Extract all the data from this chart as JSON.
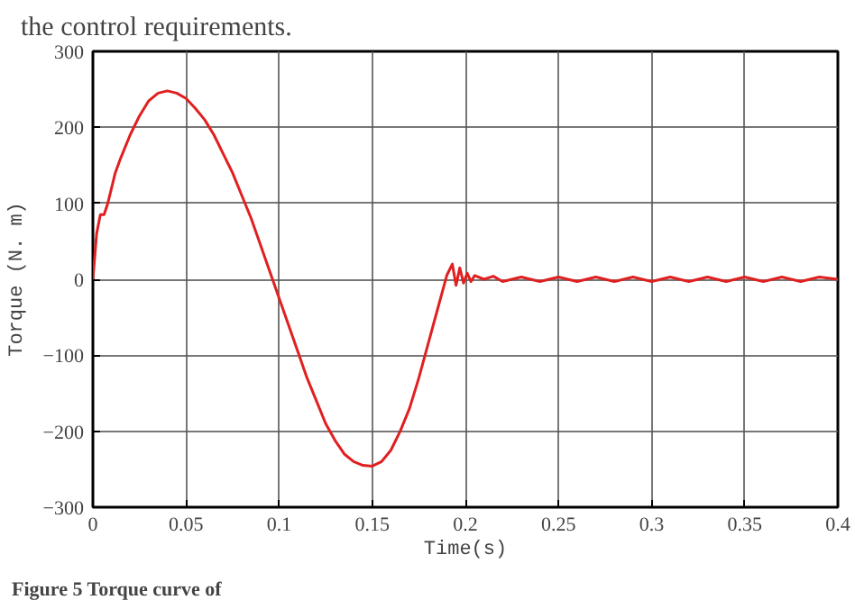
{
  "chart_data": {
    "type": "line",
    "xlabel": "Time(s)",
    "ylabel": "Torque (N. m)",
    "annotations": [
      "the control requirements.",
      "Figure 5 Torque curve of"
    ],
    "series": [
      {
        "color": "#e02020",
        "x": [
          0,
          0.002,
          0.004,
          0.006,
          0.008,
          0.01,
          0.012,
          0.015,
          0.02,
          0.025,
          0.03,
          0.035,
          0.04,
          0.045,
          0.05,
          0.055,
          0.06,
          0.065,
          0.07,
          0.075,
          0.08,
          0.085,
          0.09,
          0.095,
          0.1,
          0.105,
          0.11,
          0.115,
          0.12,
          0.125,
          0.13,
          0.135,
          0.14,
          0.145,
          0.15,
          0.155,
          0.16,
          0.165,
          0.17,
          0.175,
          0.18,
          0.185,
          0.19,
          0.193,
          0.195,
          0.197,
          0.199,
          0.201,
          0.203,
          0.205,
          0.21,
          0.215,
          0.22,
          0.23,
          0.24,
          0.25,
          0.26,
          0.27,
          0.28,
          0.29,
          0.3,
          0.31,
          0.32,
          0.33,
          0.34,
          0.35,
          0.36,
          0.37,
          0.38,
          0.39,
          0.4
        ],
        "values": [
          0,
          60,
          85,
          85,
          100,
          120,
          140,
          160,
          190,
          215,
          235,
          245,
          248,
          245,
          238,
          225,
          210,
          190,
          165,
          140,
          110,
          80,
          45,
          10,
          -25,
          -60,
          -95,
          -130,
          -160,
          -190,
          -212,
          -230,
          -240,
          -245,
          -246,
          -240,
          -225,
          -200,
          -170,
          -130,
          -85,
          -40,
          5,
          20,
          -8,
          15,
          -5,
          8,
          -3,
          5,
          0,
          4,
          -3,
          3,
          -3,
          3,
          -3,
          3,
          -3,
          3,
          -3,
          3,
          -3,
          3,
          -3,
          3,
          -3,
          3,
          -3,
          3,
          0
        ]
      }
    ],
    "xlim": [
      0,
      0.4
    ],
    "ylim": [
      -300,
      300
    ],
    "xticks": [
      0,
      0.05,
      0.1,
      0.15,
      0.2,
      0.25,
      0.3,
      0.35,
      0.4
    ],
    "yticks": [
      -300,
      -200,
      -100,
      0,
      100,
      200,
      300
    ],
    "grid": true
  }
}
